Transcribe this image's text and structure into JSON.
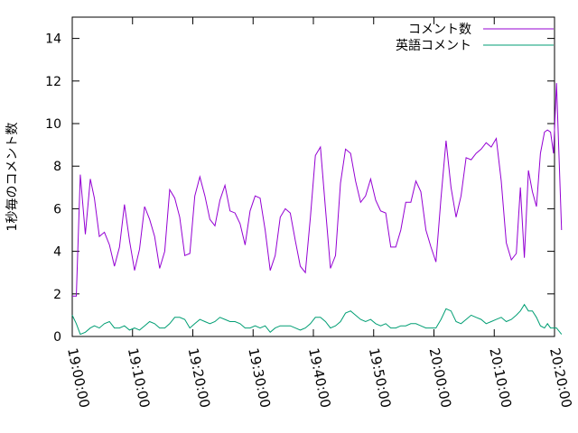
{
  "chart_data": {
    "type": "line",
    "title": "",
    "xlabel": "",
    "ylabel": "1秒毎のコメント数",
    "xlim": [
      "19:00:00",
      "20:20:00"
    ],
    "ylim": [
      0,
      15
    ],
    "x_ticks": [
      "19:00:00",
      "19:10:00",
      "19:20:00",
      "19:30:00",
      "19:40:00",
      "19:50:00",
      "20:00:00",
      "20:10:00",
      "20:20:00"
    ],
    "y_ticks": [
      0,
      2,
      4,
      6,
      8,
      10,
      12,
      14
    ],
    "grid": false,
    "legend_position": "top-right",
    "series": [
      {
        "name": "コメント数",
        "color": "#9400d3",
        "points": [
          [
            "19:00:00",
            1.9
          ],
          [
            "19:00:40",
            1.9
          ],
          [
            "19:01:20",
            7.6
          ],
          [
            "19:02:10",
            4.8
          ],
          [
            "19:03:00",
            7.4
          ],
          [
            "19:03:40",
            6.5
          ],
          [
            "19:04:30",
            4.7
          ],
          [
            "19:05:20",
            4.9
          ],
          [
            "19:06:10",
            4.3
          ],
          [
            "19:07:00",
            3.3
          ],
          [
            "19:07:50",
            4.2
          ],
          [
            "19:08:40",
            6.2
          ],
          [
            "19:09:30",
            4.5
          ],
          [
            "19:10:20",
            3.1
          ],
          [
            "19:11:10",
            4.1
          ],
          [
            "19:12:00",
            6.1
          ],
          [
            "19:12:50",
            5.5
          ],
          [
            "19:13:40",
            4.7
          ],
          [
            "19:14:30",
            3.2
          ],
          [
            "19:15:20",
            4.0
          ],
          [
            "19:16:10",
            6.9
          ],
          [
            "19:17:00",
            6.5
          ],
          [
            "19:17:50",
            5.6
          ],
          [
            "19:18:40",
            3.8
          ],
          [
            "19:19:30",
            3.9
          ],
          [
            "19:20:20",
            6.6
          ],
          [
            "19:21:10",
            7.5
          ],
          [
            "19:22:00",
            6.6
          ],
          [
            "19:22:50",
            5.5
          ],
          [
            "19:23:40",
            5.2
          ],
          [
            "19:24:30",
            6.4
          ],
          [
            "19:25:20",
            7.1
          ],
          [
            "19:26:10",
            5.9
          ],
          [
            "19:27:00",
            5.8
          ],
          [
            "19:27:50",
            5.3
          ],
          [
            "19:28:40",
            4.3
          ],
          [
            "19:29:30",
            5.9
          ],
          [
            "19:30:20",
            6.6
          ],
          [
            "19:31:10",
            6.5
          ],
          [
            "19:32:00",
            5.0
          ],
          [
            "19:32:50",
            3.1
          ],
          [
            "19:33:40",
            3.8
          ],
          [
            "19:34:30",
            5.6
          ],
          [
            "19:35:20",
            6.0
          ],
          [
            "19:36:10",
            5.8
          ],
          [
            "19:37:00",
            4.5
          ],
          [
            "19:37:50",
            3.3
          ],
          [
            "19:38:40",
            3.0
          ],
          [
            "19:39:30",
            5.6
          ],
          [
            "19:40:20",
            8.5
          ],
          [
            "19:41:10",
            8.9
          ],
          [
            "19:42:00",
            6.0
          ],
          [
            "19:42:50",
            3.2
          ],
          [
            "19:43:40",
            3.8
          ],
          [
            "19:44:30",
            7.2
          ],
          [
            "19:45:20",
            8.8
          ],
          [
            "19:46:10",
            8.6
          ],
          [
            "19:47:00",
            7.3
          ],
          [
            "19:47:50",
            6.3
          ],
          [
            "19:48:40",
            6.6
          ],
          [
            "19:49:30",
            7.4
          ],
          [
            "19:50:20",
            6.4
          ],
          [
            "19:51:10",
            5.9
          ],
          [
            "19:52:00",
            5.8
          ],
          [
            "19:52:50",
            4.2
          ],
          [
            "19:53:40",
            4.2
          ],
          [
            "19:54:30",
            5.0
          ],
          [
            "19:55:20",
            6.3
          ],
          [
            "19:56:10",
            6.3
          ],
          [
            "19:57:00",
            7.3
          ],
          [
            "19:57:50",
            6.8
          ],
          [
            "19:58:40",
            5.0
          ],
          [
            "19:59:30",
            4.2
          ],
          [
            "20:00:20",
            3.5
          ],
          [
            "20:01:10",
            6.5
          ],
          [
            "20:02:00",
            9.2
          ],
          [
            "20:02:50",
            7.0
          ],
          [
            "20:03:40",
            5.6
          ],
          [
            "20:04:30",
            6.6
          ],
          [
            "20:05:20",
            8.4
          ],
          [
            "20:06:10",
            8.3
          ],
          [
            "20:07:00",
            8.6
          ],
          [
            "20:07:50",
            8.8
          ],
          [
            "20:08:40",
            9.1
          ],
          [
            "20:09:30",
            8.9
          ],
          [
            "20:10:20",
            9.3
          ],
          [
            "20:11:10",
            7.3
          ],
          [
            "20:12:00",
            4.4
          ],
          [
            "20:12:50",
            3.6
          ],
          [
            "20:13:40",
            3.9
          ],
          [
            "20:14:20",
            7.0
          ],
          [
            "20:15:00",
            3.7
          ],
          [
            "20:15:40",
            7.8
          ],
          [
            "20:16:20",
            6.8
          ],
          [
            "20:17:00",
            6.1
          ],
          [
            "20:17:40",
            8.6
          ],
          [
            "20:18:20",
            9.6
          ],
          [
            "20:18:50",
            9.7
          ],
          [
            "20:19:20",
            9.6
          ],
          [
            "20:19:50",
            8.6
          ],
          [
            "20:20:20",
            11.9
          ],
          [
            "20:21:10",
            5.0
          ]
        ]
      },
      {
        "name": "英語コメント",
        "color": "#009e73",
        "points": [
          [
            "19:00:00",
            1.0
          ],
          [
            "19:00:40",
            0.6
          ],
          [
            "19:01:20",
            0.1
          ],
          [
            "19:02:10",
            0.2
          ],
          [
            "19:03:00",
            0.4
          ],
          [
            "19:03:40",
            0.5
          ],
          [
            "19:04:30",
            0.4
          ],
          [
            "19:05:20",
            0.6
          ],
          [
            "19:06:10",
            0.7
          ],
          [
            "19:07:00",
            0.4
          ],
          [
            "19:07:50",
            0.4
          ],
          [
            "19:08:40",
            0.5
          ],
          [
            "19:09:30",
            0.3
          ],
          [
            "19:10:20",
            0.4
          ],
          [
            "19:11:10",
            0.3
          ],
          [
            "19:12:00",
            0.5
          ],
          [
            "19:12:50",
            0.7
          ],
          [
            "19:13:40",
            0.6
          ],
          [
            "19:14:30",
            0.4
          ],
          [
            "19:15:20",
            0.4
          ],
          [
            "19:16:10",
            0.6
          ],
          [
            "19:17:00",
            0.9
          ],
          [
            "19:17:50",
            0.9
          ],
          [
            "19:18:40",
            0.8
          ],
          [
            "19:19:30",
            0.4
          ],
          [
            "19:20:20",
            0.6
          ],
          [
            "19:21:10",
            0.8
          ],
          [
            "19:22:00",
            0.7
          ],
          [
            "19:22:50",
            0.6
          ],
          [
            "19:23:40",
            0.7
          ],
          [
            "19:24:30",
            0.9
          ],
          [
            "19:25:20",
            0.8
          ],
          [
            "19:26:10",
            0.7
          ],
          [
            "19:27:00",
            0.7
          ],
          [
            "19:27:50",
            0.6
          ],
          [
            "19:28:40",
            0.4
          ],
          [
            "19:29:30",
            0.4
          ],
          [
            "19:30:20",
            0.5
          ],
          [
            "19:31:10",
            0.4
          ],
          [
            "19:32:00",
            0.5
          ],
          [
            "19:32:50",
            0.2
          ],
          [
            "19:33:40",
            0.4
          ],
          [
            "19:34:30",
            0.5
          ],
          [
            "19:35:20",
            0.5
          ],
          [
            "19:36:10",
            0.5
          ],
          [
            "19:37:00",
            0.4
          ],
          [
            "19:37:50",
            0.3
          ],
          [
            "19:38:40",
            0.4
          ],
          [
            "19:39:30",
            0.6
          ],
          [
            "19:40:20",
            0.9
          ],
          [
            "19:41:10",
            0.9
          ],
          [
            "19:42:00",
            0.7
          ],
          [
            "19:42:50",
            0.4
          ],
          [
            "19:43:40",
            0.5
          ],
          [
            "19:44:30",
            0.7
          ],
          [
            "19:45:20",
            1.1
          ],
          [
            "19:46:10",
            1.2
          ],
          [
            "19:47:00",
            1.0
          ],
          [
            "19:47:50",
            0.8
          ],
          [
            "19:48:40",
            0.7
          ],
          [
            "19:49:30",
            0.8
          ],
          [
            "19:50:20",
            0.6
          ],
          [
            "19:51:10",
            0.5
          ],
          [
            "19:52:00",
            0.6
          ],
          [
            "19:52:50",
            0.4
          ],
          [
            "19:53:40",
            0.4
          ],
          [
            "19:54:30",
            0.5
          ],
          [
            "19:55:20",
            0.5
          ],
          [
            "19:56:10",
            0.6
          ],
          [
            "19:57:00",
            0.6
          ],
          [
            "19:57:50",
            0.5
          ],
          [
            "19:58:40",
            0.4
          ],
          [
            "19:59:30",
            0.4
          ],
          [
            "20:00:20",
            0.4
          ],
          [
            "20:01:10",
            0.8
          ],
          [
            "20:02:00",
            1.3
          ],
          [
            "20:02:50",
            1.2
          ],
          [
            "20:03:40",
            0.7
          ],
          [
            "20:04:30",
            0.6
          ],
          [
            "20:05:20",
            0.8
          ],
          [
            "20:06:10",
            1.0
          ],
          [
            "20:07:00",
            0.9
          ],
          [
            "20:07:50",
            0.8
          ],
          [
            "20:08:40",
            0.6
          ],
          [
            "20:09:30",
            0.7
          ],
          [
            "20:10:20",
            0.8
          ],
          [
            "20:11:10",
            0.9
          ],
          [
            "20:12:00",
            0.7
          ],
          [
            "20:12:50",
            0.8
          ],
          [
            "20:13:40",
            1.0
          ],
          [
            "20:14:20",
            1.2
          ],
          [
            "20:15:00",
            1.5
          ],
          [
            "20:15:40",
            1.2
          ],
          [
            "20:16:20",
            1.2
          ],
          [
            "20:17:00",
            0.9
          ],
          [
            "20:17:40",
            0.5
          ],
          [
            "20:18:20",
            0.4
          ],
          [
            "20:18:50",
            0.6
          ],
          [
            "20:19:20",
            0.4
          ],
          [
            "20:19:50",
            0.4
          ],
          [
            "20:20:20",
            0.4
          ],
          [
            "20:21:10",
            0.1
          ]
        ]
      }
    ]
  }
}
